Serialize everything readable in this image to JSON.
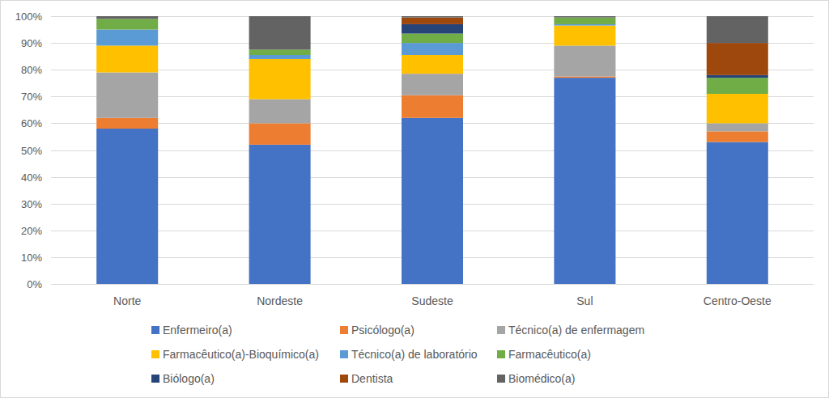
{
  "chart_data": {
    "type": "bar",
    "stacked": true,
    "grid": true,
    "legend": "bottom",
    "categories": [
      "Norte",
      "Nordeste",
      "Sudeste",
      "Sul",
      "Centro-Oeste"
    ],
    "ylim": [
      0,
      100
    ],
    "yticks": [
      {
        "value": 0,
        "label": "0%"
      },
      {
        "value": 10,
        "label": "10%"
      },
      {
        "value": 20,
        "label": "20%"
      },
      {
        "value": 30,
        "label": "30%"
      },
      {
        "value": 40,
        "label": "40%"
      },
      {
        "value": 50,
        "label": "50%"
      },
      {
        "value": 60,
        "label": "60%"
      },
      {
        "value": 70,
        "label": "70%"
      },
      {
        "value": 80,
        "label": "80%"
      },
      {
        "value": 90,
        "label": "90%"
      },
      {
        "value": 100,
        "label": "100%"
      }
    ],
    "series": [
      {
        "name": "Enfermeiro(a)",
        "color": "#4472c4",
        "values": [
          58,
          52,
          62,
          77,
          53
        ]
      },
      {
        "name": "Psicólogo(a)",
        "color": "#ed7d31",
        "values": [
          4,
          8,
          8.5,
          0.5,
          4
        ]
      },
      {
        "name": "Técnico(a) de enfermagem",
        "color": "#a5a5a5",
        "values": [
          17,
          9,
          8,
          11.5,
          3
        ]
      },
      {
        "name": "Farmacêutico(a)-Bioquímico(a)",
        "color": "#ffc000",
        "values": [
          10,
          15,
          7,
          7.5,
          11
        ]
      },
      {
        "name": "Técnico(a) de laboratório",
        "color": "#5b9bd5",
        "values": [
          6,
          1.5,
          4.5,
          0.5,
          0
        ]
      },
      {
        "name": "Farmacêutico(a)",
        "color": "#70ad47",
        "values": [
          4,
          2,
          3.5,
          2.5,
          6
        ]
      },
      {
        "name": "Biólogo(a)",
        "color": "#264478",
        "values": [
          0,
          0,
          3.5,
          0,
          1
        ]
      },
      {
        "name": "Dentista",
        "color": "#9e480e",
        "values": [
          0,
          0,
          2.5,
          0,
          12
        ]
      },
      {
        "name": "Biomédico(a)",
        "color": "#636363",
        "values": [
          1,
          12.5,
          0.5,
          0.5,
          10
        ]
      }
    ]
  }
}
